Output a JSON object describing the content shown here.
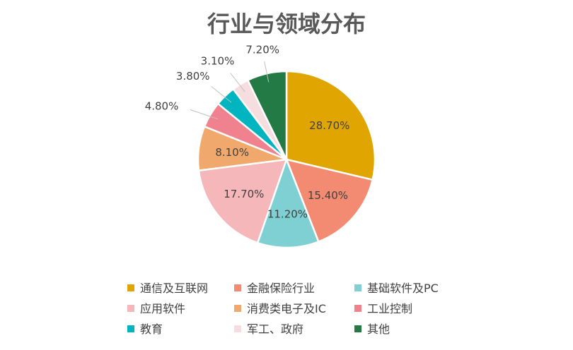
{
  "chart_data": {
    "type": "pie",
    "title": "行业与领域分布",
    "legend_position": "bottom",
    "start_angle_deg": 0,
    "direction": "clockwise",
    "slices": [
      {
        "name": "通信及互联网",
        "value": 28.7,
        "label": "28.70%",
        "color": "#E0A500"
      },
      {
        "name": "金融保险行业",
        "value": 15.4,
        "label": "15.40%",
        "color": "#F38B72"
      },
      {
        "name": "基础软件及PC",
        "value": 11.2,
        "label": "11.20%",
        "color": "#7ED0D2"
      },
      {
        "name": "应用软件",
        "value": 17.7,
        "label": "17.70%",
        "color": "#F5B7B9"
      },
      {
        "name": "消费类电子及IC",
        "value": 8.1,
        "label": "8.10%",
        "color": "#F0A86C"
      },
      {
        "name": "工业控制",
        "value": 4.8,
        "label": "4.80%",
        "color": "#F0818E"
      },
      {
        "name": "教育",
        "value": 3.8,
        "label": "3.80%",
        "color": "#00B4C0"
      },
      {
        "name": "军工、政府",
        "value": 3.1,
        "label": "3.10%",
        "color": "#F6DDE0"
      },
      {
        "name": "其他",
        "value": 7.2,
        "label": "7.20%",
        "color": "#247A45"
      }
    ]
  }
}
